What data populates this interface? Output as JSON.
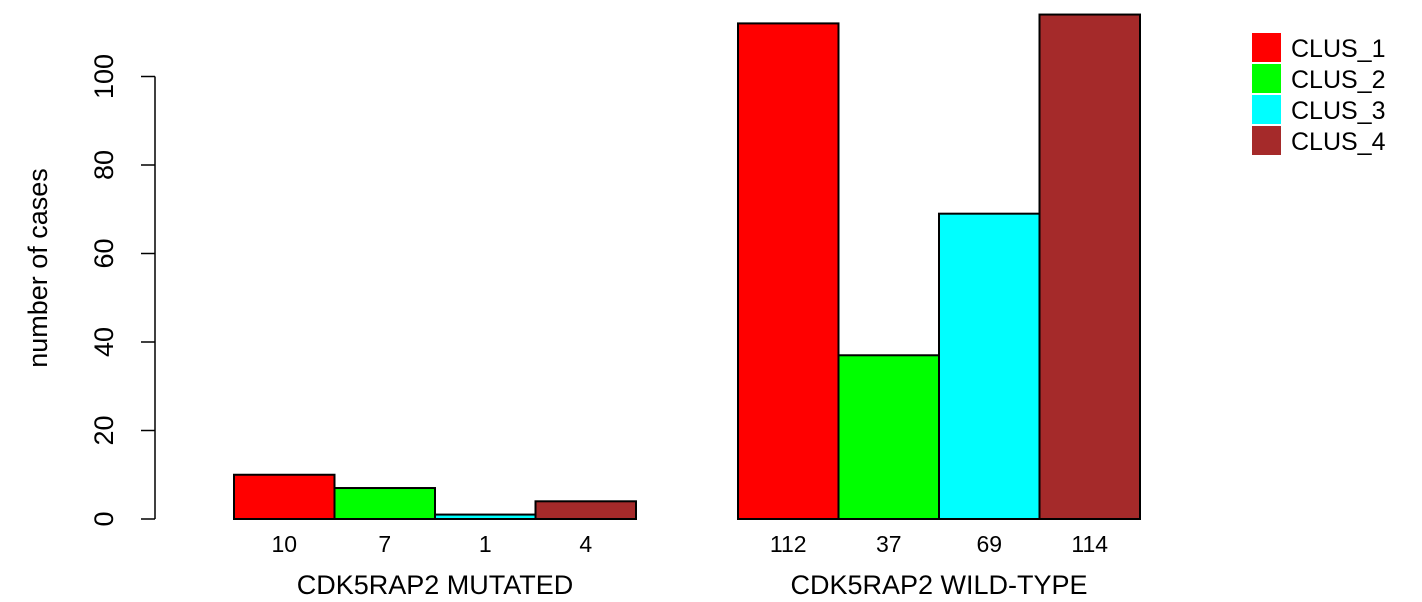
{
  "chart_data": {
    "type": "bar",
    "ylabel": "number of cases",
    "ylim": [
      0,
      115
    ],
    "y_ticks": [
      0,
      20,
      40,
      60,
      80,
      100
    ],
    "groups": [
      {
        "label": "CDK5RAP2 MUTATED",
        "values": [
          10,
          7,
          1,
          4
        ],
        "value_labels": [
          "10",
          "7",
          "1",
          "4"
        ]
      },
      {
        "label": "CDK5RAP2 WILD-TYPE",
        "values": [
          112,
          37,
          69,
          114
        ],
        "value_labels": [
          "112",
          "37",
          "69",
          "114"
        ]
      }
    ],
    "series": [
      {
        "name": "CLUS_1",
        "color": "#ff0000"
      },
      {
        "name": "CLUS_2",
        "color": "#00ff00"
      },
      {
        "name": "CLUS_3",
        "color": "#00ffff"
      },
      {
        "name": "CLUS_4",
        "color": "#a52a2a"
      }
    ],
    "legend": "top-right",
    "grid": false
  }
}
